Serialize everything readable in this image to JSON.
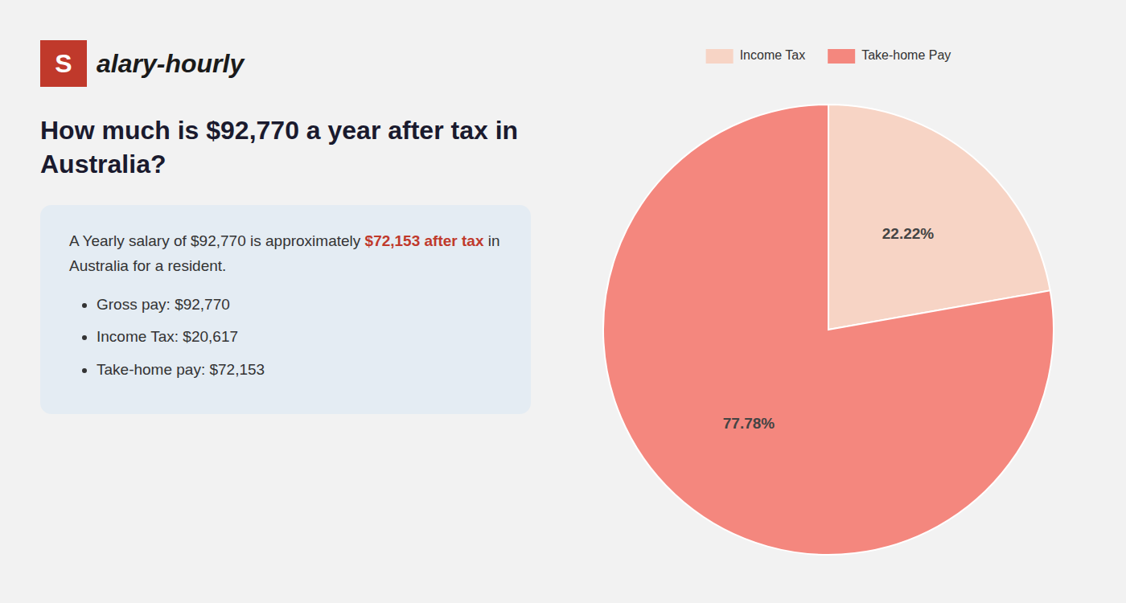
{
  "chart_data": {
    "type": "pie",
    "title": "How much is $92,770 a year after tax in Australia?",
    "categories": [
      "Income Tax",
      "Take-home Pay"
    ],
    "values": [
      22.22,
      77.78
    ],
    "colors": [
      "#f7d4c5",
      "#f4877e"
    ],
    "data_labels": true,
    "value_labels": [
      "22.22%",
      "77.78%"
    ],
    "legend": "top",
    "annotations": [
      {
        "text": "S",
        "color": "#c0392b"
      },
      {
        "text": "alary-hourly"
      },
      {
        "text": "A Yearly salary of $92,770 is approximately "
      },
      {
        "text": "$72,153 after tax",
        "color": "#c0392b"
      },
      {
        "text": " in"
      },
      {
        "text": "Australia for a resident."
      },
      {
        "text": "Gross pay: $92,770"
      },
      {
        "text": "Income Tax: $20,617"
      },
      {
        "text": "Take-home pay: $72,153"
      }
    ]
  }
}
